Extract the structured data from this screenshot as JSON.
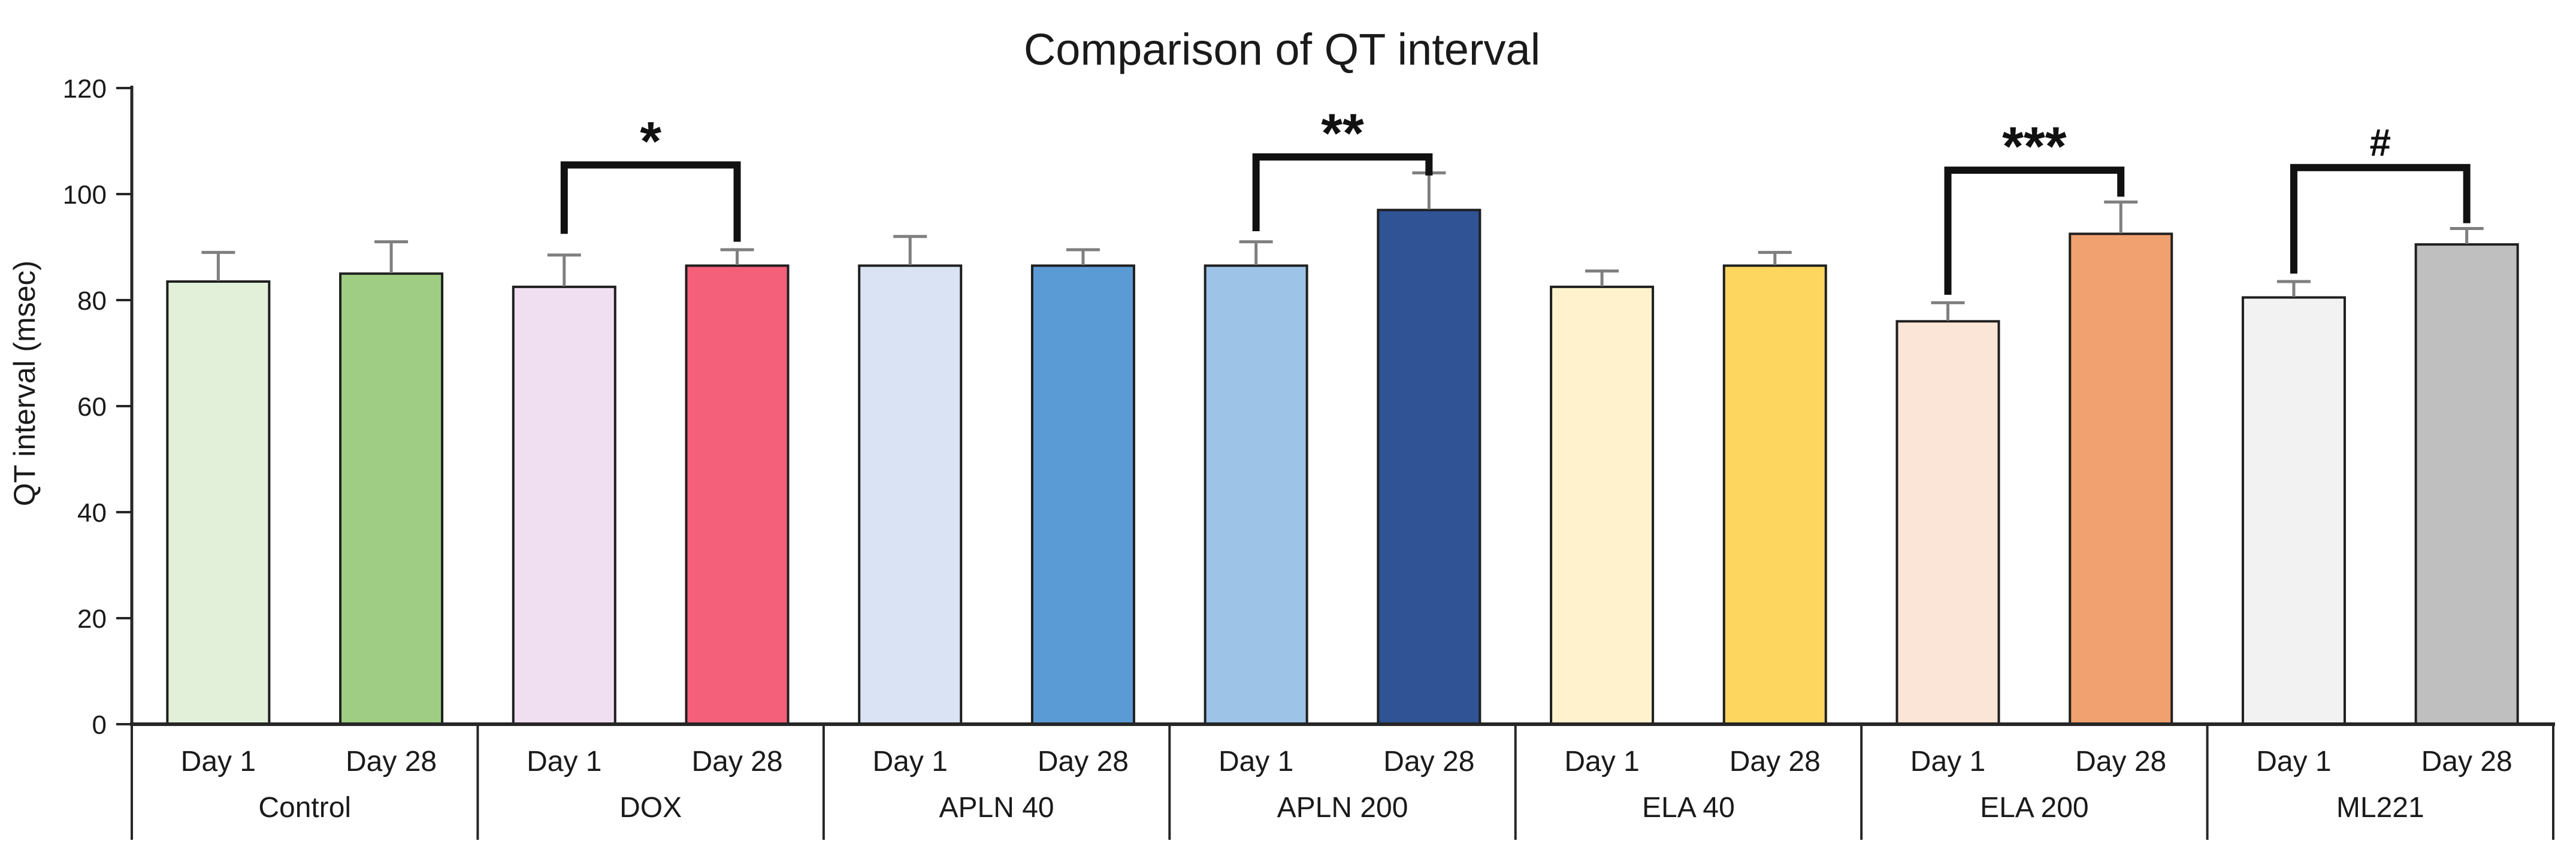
{
  "page": {
    "background": "#ffffff"
  },
  "chart_data": {
    "type": "bar",
    "title": "Comparison of QT interval",
    "xlabel": "",
    "ylabel": "QT interval (msec)",
    "ylim": [
      0,
      120
    ],
    "yticks": [
      0,
      20,
      40,
      60,
      80,
      100,
      120
    ],
    "grid": false,
    "legend_position": "none",
    "series_labels": [
      "Day 1",
      "Day 28"
    ],
    "groups": [
      {
        "name": "Control",
        "bars": [
          {
            "label": "Day 1",
            "value": 83.5,
            "error": 5.5,
            "color": "#e2f0d9"
          },
          {
            "label": "Day 28",
            "value": 85.0,
            "error": 6.0,
            "color": "#9fcd83"
          }
        ]
      },
      {
        "name": "DOX",
        "bars": [
          {
            "label": "Day 1",
            "value": 82.5,
            "error": 6.0,
            "color": "#f0def1"
          },
          {
            "label": "Day 28",
            "value": 86.5,
            "error": 3.0,
            "color": "#f4607a"
          }
        ],
        "significance": {
          "label": "*",
          "bracket_y": 105.5,
          "leg_left_y": 92.5,
          "leg_right_y": 91.0
        }
      },
      {
        "name": "APLN 40",
        "bars": [
          {
            "label": "Day 1",
            "value": 86.5,
            "error": 5.5,
            "color": "#dae3f3"
          },
          {
            "label": "Day 28",
            "value": 86.5,
            "error": 3.0,
            "color": "#5b9bd5"
          }
        ]
      },
      {
        "name": "APLN 200",
        "bars": [
          {
            "label": "Day 1",
            "value": 86.5,
            "error": 4.5,
            "color": "#9dc3e6"
          },
          {
            "label": "Day 28",
            "value": 97.0,
            "error": 7.0,
            "color": "#2f5394"
          }
        ],
        "significance": {
          "label": "**",
          "bracket_y": 107.0,
          "leg_left_y": 93.0,
          "leg_right_y": 103.5
        }
      },
      {
        "name": "ELA 40",
        "bars": [
          {
            "label": "Day 1",
            "value": 82.5,
            "error": 3.0,
            "color": "#fff2cc"
          },
          {
            "label": "Day 28",
            "value": 86.5,
            "error": 2.5,
            "color": "#fdd65f"
          }
        ]
      },
      {
        "name": "ELA 200",
        "bars": [
          {
            "label": "Day 1",
            "value": 76.0,
            "error": 3.5,
            "color": "#fbe5d6"
          },
          {
            "label": "Day 28",
            "value": 92.5,
            "error": 6.0,
            "color": "#f1a06f"
          }
        ],
        "significance": {
          "label": "***",
          "bracket_y": 104.5,
          "leg_left_y": 81.0,
          "leg_right_y": 99.5
        }
      },
      {
        "name": "ML221",
        "bars": [
          {
            "label": "Day 1",
            "value": 80.5,
            "error": 3.0,
            "color": "#f2f2f2"
          },
          {
            "label": "Day 28",
            "value": 90.5,
            "error": 3.0,
            "color": "#bfbfbf"
          }
        ],
        "significance": {
          "label": "#",
          "bracket_y": 105.0,
          "leg_left_y": 85.0,
          "leg_right_y": 94.5
        }
      }
    ],
    "style_colors": {
      "axis": "#262626",
      "bar_stroke": "#1f1f1f",
      "error_bar": "#7f7f7f",
      "bracket": "#111111",
      "text": "#1a1a1a"
    }
  }
}
